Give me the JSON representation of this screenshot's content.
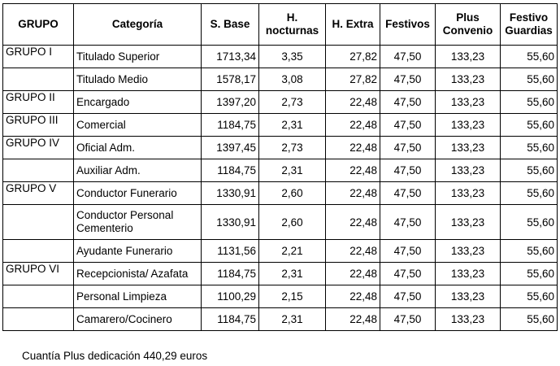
{
  "table": {
    "headers": {
      "grupo": "GRUPO",
      "categoria": "Categoría",
      "s_base": "S. Base",
      "h_nocturnas_1": "H.",
      "h_nocturnas_2": "nocturnas",
      "h_extra": "H. Extra",
      "festivos": "Festivos",
      "plus_convenio_1": "Plus",
      "plus_convenio_2": "Convenio",
      "festivo_guardias_1": "Festivo",
      "festivo_guardias_2": "Guardias"
    },
    "rows": [
      {
        "grupo": "GRUPO I",
        "categoria": "Titulado Superior",
        "s_base": "1713,34",
        "h_nocturnas": "3,35",
        "h_extra": "27,82",
        "festivos": "47,50",
        "plus_convenio": "133,23",
        "festivo_guardias": "55,60"
      },
      {
        "grupo": "",
        "categoria": "Titulado Medio",
        "s_base": "1578,17",
        "h_nocturnas": "3,08",
        "h_extra": "27,82",
        "festivos": "47,50",
        "plus_convenio": "133,23",
        "festivo_guardias": "55,60"
      },
      {
        "grupo": "GRUPO II",
        "categoria": "Encargado",
        "s_base": "1397,20",
        "h_nocturnas": "2,73",
        "h_extra": "22,48",
        "festivos": "47,50",
        "plus_convenio": "133,23",
        "festivo_guardias": "55,60"
      },
      {
        "grupo": "GRUPO III",
        "categoria": "Comercial",
        "s_base": "1184,75",
        "h_nocturnas": "2,31",
        "h_extra": "22,48",
        "festivos": "47,50",
        "plus_convenio": "133,23",
        "festivo_guardias": "55,60"
      },
      {
        "grupo": "GRUPO IV",
        "categoria": "Oficial Adm.",
        "s_base": "1397,45",
        "h_nocturnas": "2,73",
        "h_extra": "22,48",
        "festivos": "47,50",
        "plus_convenio": "133,23",
        "festivo_guardias": "55,60"
      },
      {
        "grupo": "",
        "categoria": "Auxiliar Adm.",
        "s_base": "1184,75",
        "h_nocturnas": "2,31",
        "h_extra": "22,48",
        "festivos": "47,50",
        "plus_convenio": "133,23",
        "festivo_guardias": "55,60"
      },
      {
        "grupo": "GRUPO V",
        "categoria": "Conductor Funerario",
        "s_base": "1330,91",
        "h_nocturnas": "2,60",
        "h_extra": "22,48",
        "festivos": "47,50",
        "plus_convenio": "133,23",
        "festivo_guardias": "55,60"
      },
      {
        "grupo": "",
        "categoria_1": "Conductor Personal",
        "categoria_2": "Cementerio",
        "s_base": "1330,91",
        "h_nocturnas": "2,60",
        "h_extra": "22,48",
        "festivos": "47,50",
        "plus_convenio": "133,23",
        "festivo_guardias": "55,60"
      },
      {
        "grupo": "",
        "categoria": "Ayudante Funerario",
        "s_base": "1131,56",
        "h_nocturnas": "2,21",
        "h_extra": "22,48",
        "festivos": "47,50",
        "plus_convenio": "133,23",
        "festivo_guardias": "55,60"
      },
      {
        "grupo": "GRUPO VI",
        "categoria": "Recepcionista/ Azafata",
        "s_base": "1184,75",
        "h_nocturnas": "2,31",
        "h_extra": "22,48",
        "festivos": "47,50",
        "plus_convenio": "133,23",
        "festivo_guardias": "55,60"
      },
      {
        "grupo": "",
        "categoria": "Personal Limpieza",
        "s_base": "1100,29",
        "h_nocturnas": "2,15",
        "h_extra": "22,48",
        "festivos": "47,50",
        "plus_convenio": "133,23",
        "festivo_guardias": "55,60"
      },
      {
        "grupo": "",
        "categoria": "Camarero/Cocinero",
        "s_base": "1184,75",
        "h_nocturnas": "2,31",
        "h_extra": "22,48",
        "festivos": "47,50",
        "plus_convenio": "133,23",
        "festivo_guardias": "55,60"
      }
    ]
  },
  "footnote": "Cuantía Plus dedicación 440,29 euros"
}
